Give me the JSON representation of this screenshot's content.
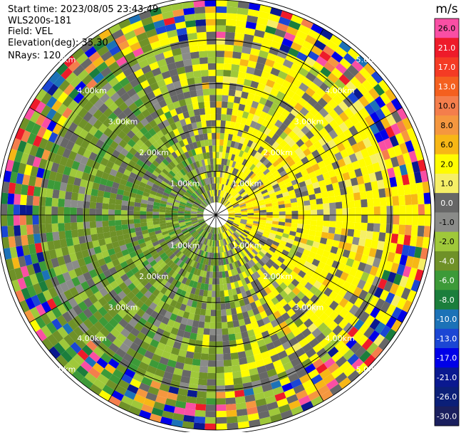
{
  "header": {
    "start_time": "Start time: 2023/08/05 23:43:49",
    "instrument": "WLS200s-181",
    "field": "Field: VEL",
    "elevation": "Elevation(deg): 35.30",
    "nrays": "NRays: 120"
  },
  "chart_data": {
    "type": "heatmap",
    "projection": "polar-ppi",
    "field": "VEL",
    "units": "m/s",
    "nrays": 120,
    "elevation_deg": 35.3,
    "range_rings_km": [
      1.0,
      2.0,
      3.0,
      4.0,
      5.0
    ],
    "range_ring_labels": [
      "1.00km",
      "2.00km",
      "3.00km",
      "4.00km",
      "5.00km"
    ],
    "colorbar": {
      "unit_label": "m/s",
      "ticks": [
        "26.0",
        "21.0",
        "17.0",
        "13.0",
        "10.0",
        "8.0",
        "6.0",
        "2.0",
        "1.0",
        "0.0",
        "-1.0",
        "-2.0",
        "-4.0",
        "-6.0",
        "-8.0",
        "-10.0",
        "-13.0",
        "-17.0",
        "-21.0",
        "-26.0",
        "-30.0"
      ],
      "colors": [
        "#f94fa4",
        "#ee1b2a",
        "#f43b24",
        "#f4601f",
        "#f47e4c",
        "#f5973f",
        "#f7b716",
        "#fffc00",
        "#f6ef66",
        "#676767",
        "#8a8b89",
        "#9fc83a",
        "#6f9128",
        "#3c9a38",
        "#1b7e3c",
        "#1c72b7",
        "#1b46d4",
        "#0000e8",
        "#0a1990",
        "#0b1f78",
        "#1a1f5e"
      ]
    }
  }
}
